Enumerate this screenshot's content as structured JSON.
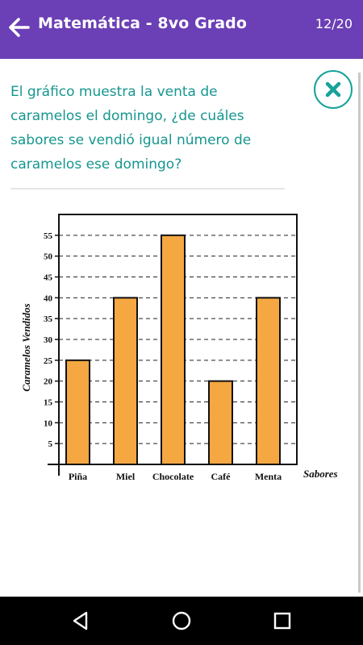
{
  "header": {
    "title": "Matemática - 8vo Grado",
    "progress": "12/20",
    "background_color": "#6b3fb5"
  },
  "question": {
    "text": "El gráfico muestra la venta de caramelos el domingo, ¿de cuáles sabores se vendió igual número de caramelos ese domingo?",
    "text_color": "#17968f"
  },
  "icons": {
    "back": "arrow-left-icon",
    "close": "close-x-icon",
    "nav_back": "triangle-back-icon",
    "nav_home": "circle-home-icon",
    "nav_recents": "square-recents-icon"
  },
  "chart_data": {
    "type": "bar",
    "categories": [
      "Piña",
      "Miel",
      "Chocolate",
      "Café",
      "Menta"
    ],
    "values": [
      25,
      40,
      55,
      20,
      40
    ],
    "title": "",
    "xlabel": "Sabores",
    "ylabel": "Caramelos Vendidos",
    "ylim": [
      0,
      60
    ],
    "yticks": [
      5,
      10,
      15,
      20,
      25,
      30,
      35,
      40,
      45,
      50,
      55
    ],
    "grid": "dashed-horizontal",
    "bar_color": "#f5a742"
  }
}
